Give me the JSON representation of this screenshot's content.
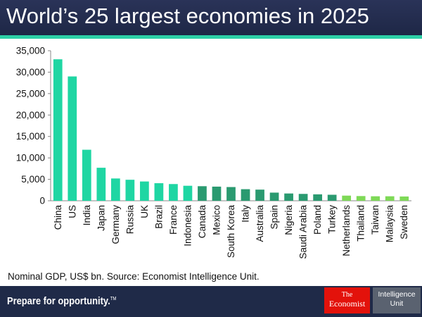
{
  "chart_data": {
    "type": "bar",
    "title": "World’s 25 largest economies in 2025",
    "xlabel": "",
    "ylabel": "",
    "ylim": [
      0,
      35000
    ],
    "yticks": [
      0,
      5000,
      10000,
      15000,
      20000,
      25000,
      30000,
      35000
    ],
    "ytick_labels": [
      "0",
      "5,000",
      "10,000",
      "15,000",
      "20,000",
      "25,000",
      "30,000",
      "35,000"
    ],
    "categories": [
      "China",
      "US",
      "India",
      "Japan",
      "Germany",
      "Russia",
      "UK",
      "Brazil",
      "France",
      "Indonesia",
      "Canada",
      "Mexico",
      "South Korea",
      "Italy",
      "Australia",
      "Spain",
      "Nigeria",
      "Saudi Arabia",
      "Poland",
      "Turkey",
      "Netherlands",
      "Thailand",
      "Taiwan",
      "Malaysia",
      "Sweden"
    ],
    "values": [
      33000,
      29000,
      11900,
      7700,
      5200,
      4900,
      4500,
      4100,
      3900,
      3500,
      3400,
      3300,
      3200,
      2700,
      2600,
      1900,
      1700,
      1600,
      1500,
      1400,
      1200,
      1100,
      1050,
      1050,
      1000
    ],
    "colors": [
      "#1fd6a3",
      "#1fd6a3",
      "#1fd6a3",
      "#1fd6a3",
      "#1fd6a3",
      "#1fd6a3",
      "#1fd6a3",
      "#1fd6a3",
      "#1fd6a3",
      "#1fd6a3",
      "#2a9a70",
      "#2a9a70",
      "#2a9a70",
      "#2a9a70",
      "#2a9a70",
      "#2a9a70",
      "#2a9a70",
      "#2a9a70",
      "#2a9a70",
      "#2a9a70",
      "#7ed957",
      "#7ed957",
      "#7ed957",
      "#7ed957",
      "#7ed957"
    ]
  },
  "source_note": "Nominal GDP, US$ bn. Source: Economist Intelligence Unit.",
  "footer": {
    "tagline": "Prepare for opportunity.",
    "trademark": "TM",
    "logo_economist_line1": "The",
    "logo_economist_line2": "Economist",
    "logo_eiu_line1": "Intelligence",
    "logo_eiu_line2": "Unit"
  }
}
